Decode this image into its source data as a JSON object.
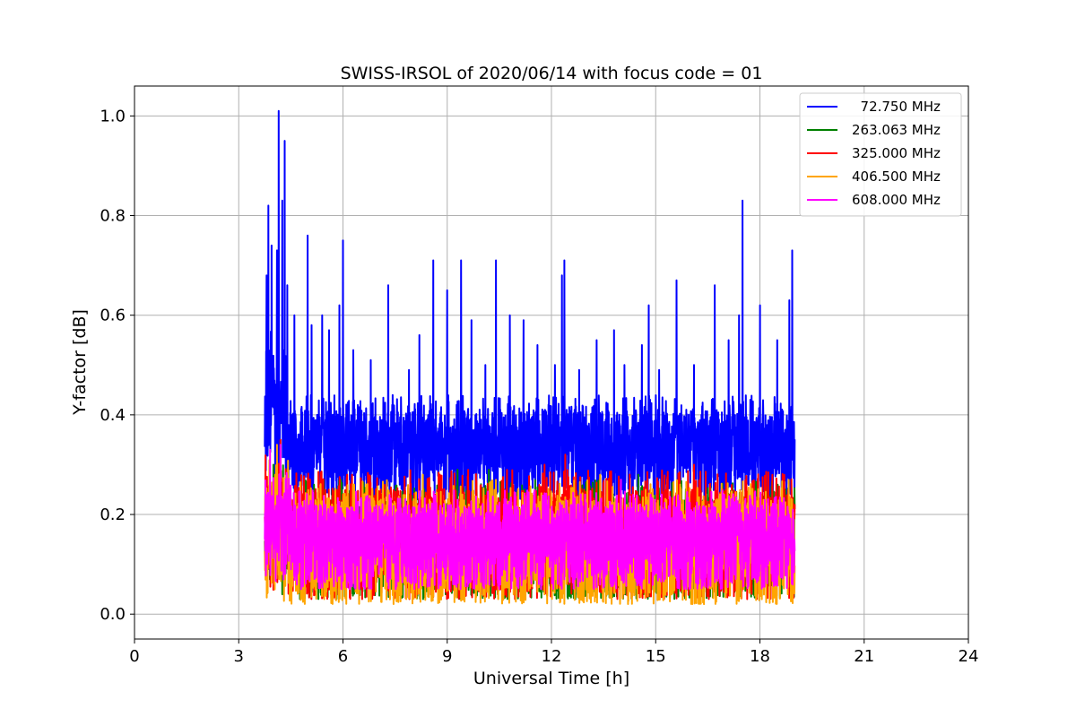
{
  "chart_data": {
    "type": "line",
    "title": "SWISS-IRSOL of 2020/06/14 with focus code = 01",
    "xlabel": "Universal Time [h]",
    "ylabel": "Y-factor [dB]",
    "xlim": [
      0,
      24
    ],
    "ylim": [
      -0.05,
      1.06
    ],
    "xticks": [
      0,
      3,
      6,
      9,
      12,
      15,
      18,
      21,
      24
    ],
    "xtick_labels": [
      "0",
      "3",
      "6",
      "9",
      "12",
      "15",
      "18",
      "21",
      "24"
    ],
    "yticks": [
      0.0,
      0.2,
      0.4,
      0.6,
      0.8,
      1.0
    ],
    "ytick_labels": [
      "0.0",
      "0.2",
      "0.4",
      "0.6",
      "0.8",
      "1.0"
    ],
    "grid": true,
    "legend_position": "top-right",
    "time_range_hours": [
      3.75,
      19.0
    ],
    "series": [
      {
        "name": "  72.750 MHz",
        "color": "#0000ff",
        "baseline": [
          0.23,
          0.44
        ],
        "peaks": [
          [
            3.8,
            0.68
          ],
          [
            3.85,
            0.82
          ],
          [
            3.95,
            0.74
          ],
          [
            4.1,
            0.73
          ],
          [
            4.15,
            1.01
          ],
          [
            4.25,
            0.83
          ],
          [
            4.32,
            0.95
          ],
          [
            4.4,
            0.66
          ],
          [
            4.6,
            0.6
          ],
          [
            4.98,
            0.76
          ],
          [
            5.1,
            0.58
          ],
          [
            5.4,
            0.6
          ],
          [
            5.6,
            0.57
          ],
          [
            5.9,
            0.62
          ],
          [
            6.0,
            0.75
          ],
          [
            6.3,
            0.53
          ],
          [
            6.8,
            0.51
          ],
          [
            7.3,
            0.66
          ],
          [
            7.9,
            0.49
          ],
          [
            8.2,
            0.56
          ],
          [
            8.6,
            0.71
          ],
          [
            9.0,
            0.65
          ],
          [
            9.4,
            0.71
          ],
          [
            9.7,
            0.59
          ],
          [
            10.1,
            0.5
          ],
          [
            10.4,
            0.71
          ],
          [
            10.8,
            0.6
          ],
          [
            11.2,
            0.59
          ],
          [
            11.6,
            0.54
          ],
          [
            12.1,
            0.5
          ],
          [
            12.3,
            0.68
          ],
          [
            12.37,
            0.71
          ],
          [
            12.8,
            0.49
          ],
          [
            13.3,
            0.55
          ],
          [
            13.8,
            0.57
          ],
          [
            14.1,
            0.5
          ],
          [
            14.6,
            0.54
          ],
          [
            14.8,
            0.62
          ],
          [
            15.1,
            0.49
          ],
          [
            15.6,
            0.67
          ],
          [
            16.1,
            0.5
          ],
          [
            16.7,
            0.66
          ],
          [
            17.1,
            0.55
          ],
          [
            17.4,
            0.6
          ],
          [
            17.5,
            0.83
          ],
          [
            18.0,
            0.62
          ],
          [
            18.5,
            0.55
          ],
          [
            18.85,
            0.63
          ],
          [
            18.93,
            0.73
          ]
        ]
      },
      {
        "name": "263.063 MHz",
        "color": "#008000",
        "baseline": [
          0.03,
          0.27
        ],
        "peaks": [
          [
            4.0,
            0.3
          ],
          [
            9.3,
            0.29
          ],
          [
            10.2,
            0.29
          ],
          [
            14.5,
            0.28
          ]
        ]
      },
      {
        "name": "325.000 MHz",
        "color": "#ff0000",
        "baseline": [
          0.03,
          0.29
        ],
        "peaks": [
          [
            4.2,
            0.35
          ],
          [
            12.4,
            0.32
          ],
          [
            11.8,
            0.3
          ],
          [
            16.1,
            0.3
          ]
        ]
      },
      {
        "name": "406.500 MHz",
        "color": "#ffa500",
        "baseline": [
          0.02,
          0.27
        ],
        "peaks": [
          [
            4.1,
            0.34
          ],
          [
            8.3,
            0.28
          ],
          [
            13.4,
            0.28
          ]
        ]
      },
      {
        "name": "608.000 MHz",
        "color": "#ff00ff",
        "baseline": [
          0.05,
          0.25
        ],
        "peaks": [
          [
            3.9,
            0.33
          ],
          [
            4.2,
            0.34
          ],
          [
            14.0,
            0.27
          ]
        ]
      }
    ]
  }
}
